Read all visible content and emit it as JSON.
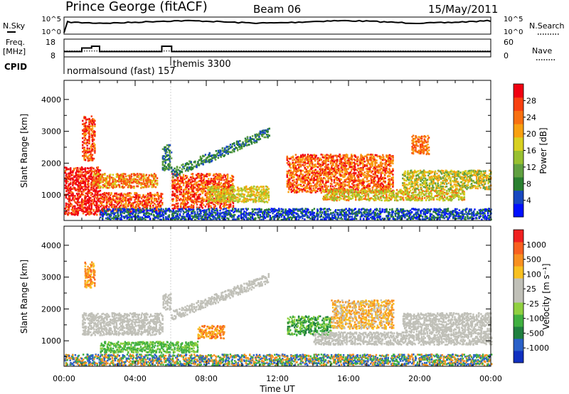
{
  "header": {
    "station": "Prince George (fitACF)",
    "beam": "Beam 06",
    "date": "15/May/2011"
  },
  "sky_panel": {
    "left_label": "N.Sky",
    "left_ticks": [
      "10^5",
      "10^0"
    ],
    "right_ticks": [
      "10^5",
      "10^0"
    ],
    "right_label": "N.Search"
  },
  "freq_panel": {
    "left_label_1": "Freq.",
    "left_label_2": "[MHz]",
    "left_ticks": [
      "18",
      "8"
    ],
    "right_ticks": [
      "60",
      "0"
    ],
    "right_label": "Nave",
    "freq_mhz": [
      {
        "t0": 0.0,
        "t1": 1.0,
        "v": 11
      },
      {
        "t0": 1.0,
        "t1": 1.55,
        "v": 13
      },
      {
        "t0": 1.55,
        "t1": 2.0,
        "v": 14
      },
      {
        "t0": 2.0,
        "t1": 5.5,
        "v": 11
      },
      {
        "t0": 5.5,
        "t1": 6.05,
        "v": 14
      },
      {
        "t0": 6.05,
        "t1": 24.0,
        "v": 11
      }
    ],
    "nave_level": 20
  },
  "cpid": {
    "label": "CPID",
    "programs": [
      {
        "start": 0.0,
        "name": "normalsound (fast) 157"
      },
      {
        "start": 6.0,
        "name": "themis 3300"
      }
    ]
  },
  "chart_data": [
    {
      "type": "heatmap",
      "name": "power",
      "ylabel": "Slant Range [km]",
      "yticks": [
        "1000",
        "2000",
        "3000",
        "4000"
      ],
      "ylim": [
        200,
        4600
      ],
      "xlim": [
        0,
        24
      ],
      "colorbar_label": "Power [dB]",
      "colorbar_ticks": [
        "4",
        "8",
        "12",
        "16",
        "20",
        "24",
        "28"
      ],
      "colorbar_colors": [
        "#0010ff",
        "#1848c0",
        "#2a8030",
        "#60a040",
        "#98c030",
        "#d8d020",
        "#f8a010",
        "#f87010",
        "#f84010",
        "#f00010"
      ],
      "scatter_bands": [
        {
          "t0": 0.0,
          "t1": 2.0,
          "r0": 400,
          "r1": 1900,
          "c": [
            7,
            9,
            11
          ]
        },
        {
          "t0": 1.0,
          "t1": 1.7,
          "r0": 2100,
          "r1": 3500,
          "c": [
            6,
            8,
            9
          ]
        },
        {
          "t0": 1.6,
          "t1": 5.2,
          "r0": 1250,
          "r1": 1700,
          "c": [
            5,
            7,
            8
          ]
        },
        {
          "t0": 2.0,
          "t1": 5.5,
          "r0": 500,
          "r1": 1100,
          "c": [
            6,
            8,
            9
          ]
        },
        {
          "t0": 5.5,
          "t1": 6.0,
          "r0": 1800,
          "r1": 2600,
          "c": [
            1,
            2,
            3
          ]
        },
        {
          "t0": 6.0,
          "t1": 9.5,
          "r0": 600,
          "r1": 1700,
          "c": [
            6,
            8,
            9
          ]
        },
        {
          "t0": 8.0,
          "t1": 11.5,
          "r0": 800,
          "r1": 1300,
          "c": [
            4,
            5,
            6
          ]
        },
        {
          "t0": 12.5,
          "t1": 18.5,
          "r0": 1100,
          "r1": 2300,
          "c": [
            6,
            7,
            9
          ]
        },
        {
          "t0": 14.5,
          "t1": 22.5,
          "r0": 850,
          "r1": 1200,
          "c": [
            4,
            5,
            7
          ]
        },
        {
          "t0": 19.0,
          "t1": 24.0,
          "r0": 1200,
          "r1": 1800,
          "c": [
            3,
            5,
            6
          ]
        },
        {
          "t0": 19.5,
          "t1": 20.5,
          "r0": 2300,
          "r1": 2900,
          "c": [
            6,
            7,
            8
          ]
        },
        {
          "t0": 2.0,
          "t1": 24.0,
          "r0": 250,
          "r1": 600,
          "c": [
            0,
            1,
            2
          ]
        }
      ],
      "rising_band": {
        "t0": 6.0,
        "t1": 11.5,
        "r0": 1700,
        "r1": 3000,
        "c": [
          1,
          2,
          3
        ]
      }
    },
    {
      "type": "heatmap",
      "name": "velocity",
      "ylabel": "Slant Range [km]",
      "yticks": [
        "1000",
        "2000",
        "3000",
        "4000"
      ],
      "ylim": [
        200,
        4600
      ],
      "xlim": [
        0,
        24
      ],
      "xticks": [
        "00:00",
        "04:00",
        "08:00",
        "12:00",
        "16:00",
        "20:00",
        "00:00"
      ],
      "xlabel": "Time UT",
      "colorbar_label": "Velocity  [m s⁻¹]",
      "colorbar_ticks": [
        "1000",
        "500",
        "100",
        "25",
        "-25",
        "-100",
        "-500",
        "-1000"
      ],
      "colorbar_colors": [
        "#1030c0",
        "#2a60c8",
        "#208040",
        "#40b040",
        "#90d040",
        "#c0c0b8",
        "#c0c0b8",
        "#f8c020",
        "#f89020",
        "#f86020",
        "#f02020"
      ],
      "scatter_bands": [
        {
          "t0": 1.1,
          "t1": 1.7,
          "r0": 2700,
          "r1": 3500,
          "c": [
            7,
            8,
            9
          ]
        },
        {
          "t0": 1.0,
          "t1": 5.5,
          "r0": 1200,
          "r1": 1900,
          "c": [
            5,
            6,
            5
          ]
        },
        {
          "t0": 5.5,
          "t1": 6.0,
          "r0": 2000,
          "r1": 2500,
          "c": [
            5,
            6,
            6
          ]
        },
        {
          "t0": 2.0,
          "t1": 7.5,
          "r0": 650,
          "r1": 1000,
          "c": [
            3,
            4,
            3
          ]
        },
        {
          "t0": 7.5,
          "t1": 9.0,
          "r0": 1100,
          "r1": 1500,
          "c": [
            8,
            9,
            7
          ]
        },
        {
          "t0": 12.5,
          "t1": 15.0,
          "r0": 1200,
          "r1": 1800,
          "c": [
            2,
            3,
            4
          ]
        },
        {
          "t0": 15.0,
          "t1": 18.5,
          "r0": 1400,
          "r1": 2300,
          "c": [
            7,
            8,
            6
          ]
        },
        {
          "t0": 14.0,
          "t1": 24.0,
          "r0": 900,
          "r1": 1300,
          "c": [
            5,
            6,
            5
          ]
        },
        {
          "t0": 19.0,
          "t1": 24.0,
          "r0": 1300,
          "r1": 1900,
          "c": [
            5,
            6,
            5
          ]
        },
        {
          "t0": 0.0,
          "t1": 24.0,
          "r0": 250,
          "r1": 600,
          "c": [
            1,
            3,
            8
          ]
        }
      ],
      "rising_band": {
        "t0": 6.0,
        "t1": 11.5,
        "r0": 1800,
        "r1": 3000,
        "c": [
          5,
          6,
          6
        ]
      }
    }
  ]
}
